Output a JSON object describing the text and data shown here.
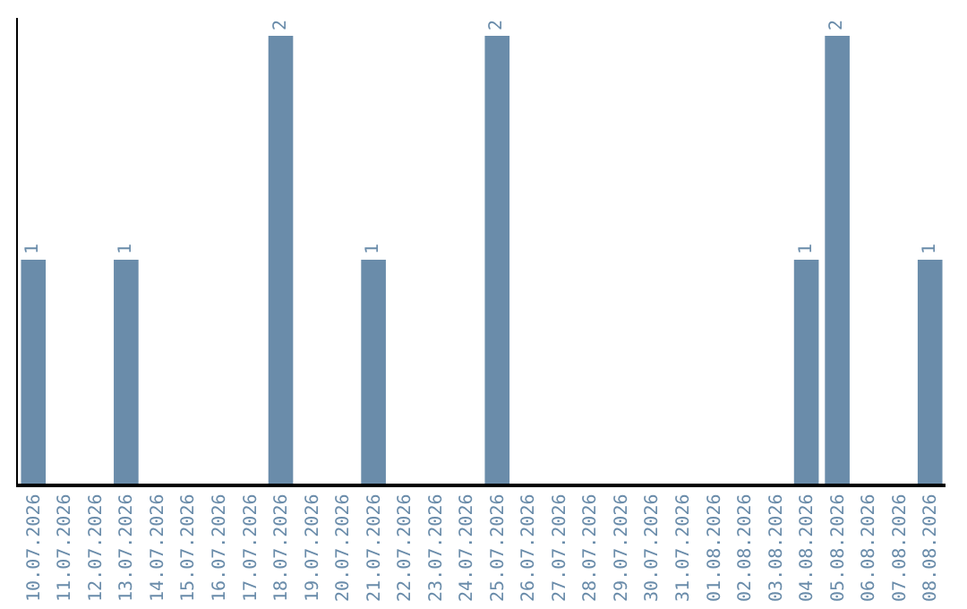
{
  "chart_data": {
    "type": "bar",
    "categories": [
      "10.07.2026",
      "11.07.2026",
      "12.07.2026",
      "13.07.2026",
      "14.07.2026",
      "15.07.2026",
      "16.07.2026",
      "17.07.2026",
      "18.07.2026",
      "19.07.2026",
      "20.07.2026",
      "21.07.2026",
      "22.07.2026",
      "23.07.2026",
      "24.07.2026",
      "25.07.2026",
      "26.07.2026",
      "27.07.2026",
      "28.07.2026",
      "29.07.2026",
      "30.07.2026",
      "31.07.2026",
      "01.08.2026",
      "02.08.2026",
      "03.08.2026",
      "04.08.2026",
      "05.08.2026",
      "06.08.2026",
      "07.08.2026",
      "08.08.2026"
    ],
    "values": [
      1,
      0,
      0,
      1,
      0,
      0,
      0,
      0,
      2,
      0,
      0,
      1,
      0,
      0,
      0,
      2,
      0,
      0,
      0,
      0,
      0,
      0,
      0,
      0,
      0,
      1,
      2,
      0,
      0,
      1
    ],
    "value_labels": [
      "1",
      null,
      null,
      "1",
      null,
      null,
      null,
      null,
      "2",
      null,
      null,
      "1",
      null,
      null,
      null,
      "2",
      null,
      null,
      null,
      null,
      null,
      null,
      null,
      null,
      null,
      "1",
      "2",
      null,
      null,
      "1"
    ],
    "color": "#6a8caa"
  }
}
